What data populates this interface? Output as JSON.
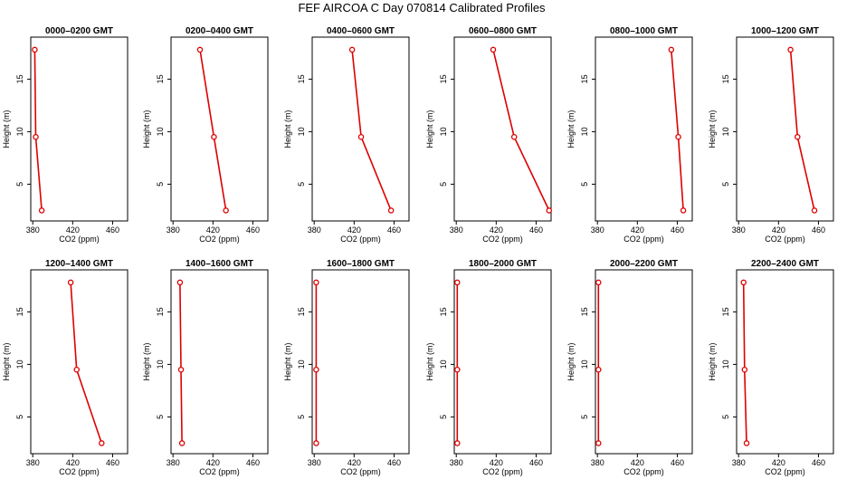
{
  "figure": {
    "title": "FEF AIRCOA C  Day 070814  Calibrated Profiles"
  },
  "chart_data": [
    {
      "type": "line",
      "title": "0000–0200 GMT",
      "xlabel": "CO2 (ppm)",
      "ylabel": "Height (m)",
      "xlim": [
        378,
        475
      ],
      "ylim": [
        1.5,
        19
      ],
      "xticks": [
        380,
        420,
        460
      ],
      "yticks": [
        5,
        10,
        15
      ],
      "grid": false,
      "series": [
        {
          "x": [
            389,
            383,
            382
          ],
          "y": [
            2.5,
            9.5,
            17.8
          ]
        }
      ],
      "color": "#dd0000"
    },
    {
      "type": "line",
      "title": "0200–0400 GMT",
      "xlabel": "CO2 (ppm)",
      "ylabel": "Height (m)",
      "xlim": [
        378,
        475
      ],
      "ylim": [
        1.5,
        19
      ],
      "xticks": [
        380,
        420,
        460
      ],
      "yticks": [
        5,
        10,
        15
      ],
      "grid": false,
      "series": [
        {
          "x": [
            433,
            421,
            407
          ],
          "y": [
            2.5,
            9.5,
            17.8
          ]
        }
      ],
      "color": "#dd0000"
    },
    {
      "type": "line",
      "title": "0400–0600 GMT",
      "xlabel": "CO2 (ppm)",
      "ylabel": "Height (m)",
      "xlim": [
        378,
        475
      ],
      "ylim": [
        1.5,
        19
      ],
      "xticks": [
        380,
        420,
        460
      ],
      "yticks": [
        5,
        10,
        15
      ],
      "grid": false,
      "series": [
        {
          "x": [
            457,
            427,
            418
          ],
          "y": [
            2.5,
            9.5,
            17.8
          ]
        }
      ],
      "color": "#dd0000"
    },
    {
      "type": "line",
      "title": "0600–0800 GMT",
      "xlabel": "CO2 (ppm)",
      "ylabel": "Height (m)",
      "xlim": [
        378,
        475
      ],
      "ylim": [
        1.5,
        19
      ],
      "xticks": [
        380,
        420,
        460
      ],
      "yticks": [
        5,
        10,
        15
      ],
      "grid": false,
      "series": [
        {
          "x": [
            473,
            438,
            417
          ],
          "y": [
            2.5,
            9.5,
            17.8
          ]
        }
      ],
      "color": "#dd0000"
    },
    {
      "type": "line",
      "title": "0800–1000 GMT",
      "xlabel": "CO2 (ppm)",
      "ylabel": "Height (m)",
      "xlim": [
        378,
        475
      ],
      "ylim": [
        1.5,
        19
      ],
      "xticks": [
        380,
        420,
        460
      ],
      "yticks": [
        5,
        10,
        15
      ],
      "grid": false,
      "series": [
        {
          "x": [
            466,
            461,
            454
          ],
          "y": [
            2.5,
            9.5,
            17.8
          ]
        }
      ],
      "color": "#dd0000"
    },
    {
      "type": "line",
      "title": "1000–1200 GMT",
      "xlabel": "CO2 (ppm)",
      "ylabel": "Height (m)",
      "xlim": [
        378,
        475
      ],
      "ylim": [
        1.5,
        19
      ],
      "xticks": [
        380,
        420,
        460
      ],
      "yticks": [
        5,
        10,
        15
      ],
      "grid": false,
      "series": [
        {
          "x": [
            456,
            439,
            432
          ],
          "y": [
            2.5,
            9.5,
            17.8
          ]
        }
      ],
      "color": "#dd0000"
    },
    {
      "type": "line",
      "title": "1200–1400 GMT",
      "xlabel": "CO2 (ppm)",
      "ylabel": "Height (m)",
      "xlim": [
        378,
        475
      ],
      "ylim": [
        1.5,
        19
      ],
      "xticks": [
        380,
        420,
        460
      ],
      "yticks": [
        5,
        10,
        15
      ],
      "grid": false,
      "series": [
        {
          "x": [
            449,
            424,
            418
          ],
          "y": [
            2.5,
            9.5,
            17.8
          ]
        }
      ],
      "color": "#dd0000"
    },
    {
      "type": "line",
      "title": "1400–1600 GMT",
      "xlabel": "CO2 (ppm)",
      "ylabel": "Height (m)",
      "xlim": [
        378,
        475
      ],
      "ylim": [
        1.5,
        19
      ],
      "xticks": [
        380,
        420,
        460
      ],
      "yticks": [
        5,
        10,
        15
      ],
      "grid": false,
      "series": [
        {
          "x": [
            389,
            388,
            387
          ],
          "y": [
            2.5,
            9.5,
            17.8
          ]
        }
      ],
      "color": "#dd0000"
    },
    {
      "type": "line",
      "title": "1600–1800 GMT",
      "xlabel": "CO2 (ppm)",
      "ylabel": "Height (m)",
      "xlim": [
        378,
        475
      ],
      "ylim": [
        1.5,
        19
      ],
      "xticks": [
        380,
        420,
        460
      ],
      "yticks": [
        5,
        10,
        15
      ],
      "grid": false,
      "series": [
        {
          "x": [
            382,
            382,
            382
          ],
          "y": [
            2.5,
            9.5,
            17.8
          ]
        }
      ],
      "color": "#dd0000"
    },
    {
      "type": "line",
      "title": "1800–2000 GMT",
      "xlabel": "CO2 (ppm)",
      "ylabel": "Height (m)",
      "xlim": [
        378,
        475
      ],
      "ylim": [
        1.5,
        19
      ],
      "xticks": [
        380,
        420,
        460
      ],
      "yticks": [
        5,
        10,
        15
      ],
      "grid": false,
      "series": [
        {
          "x": [
            381,
            381,
            381
          ],
          "y": [
            2.5,
            9.5,
            17.8
          ]
        }
      ],
      "color": "#dd0000"
    },
    {
      "type": "line",
      "title": "2000–2200 GMT",
      "xlabel": "CO2 (ppm)",
      "ylabel": "Height (m)",
      "xlim": [
        378,
        475
      ],
      "ylim": [
        1.5,
        19
      ],
      "xticks": [
        380,
        420,
        460
      ],
      "yticks": [
        5,
        10,
        15
      ],
      "grid": false,
      "series": [
        {
          "x": [
            381,
            381,
            381
          ],
          "y": [
            2.5,
            9.5,
            17.8
          ]
        }
      ],
      "color": "#dd0000"
    },
    {
      "type": "line",
      "title": "2200–2400 GMT",
      "xlabel": "CO2 (ppm)",
      "ylabel": "Height (m)",
      "xlim": [
        378,
        475
      ],
      "ylim": [
        1.5,
        19
      ],
      "xticks": [
        380,
        420,
        460
      ],
      "yticks": [
        5,
        10,
        15
      ],
      "grid": false,
      "series": [
        {
          "x": [
            388,
            386,
            385
          ],
          "y": [
            2.5,
            9.5,
            17.8
          ]
        }
      ],
      "color": "#dd0000"
    }
  ]
}
